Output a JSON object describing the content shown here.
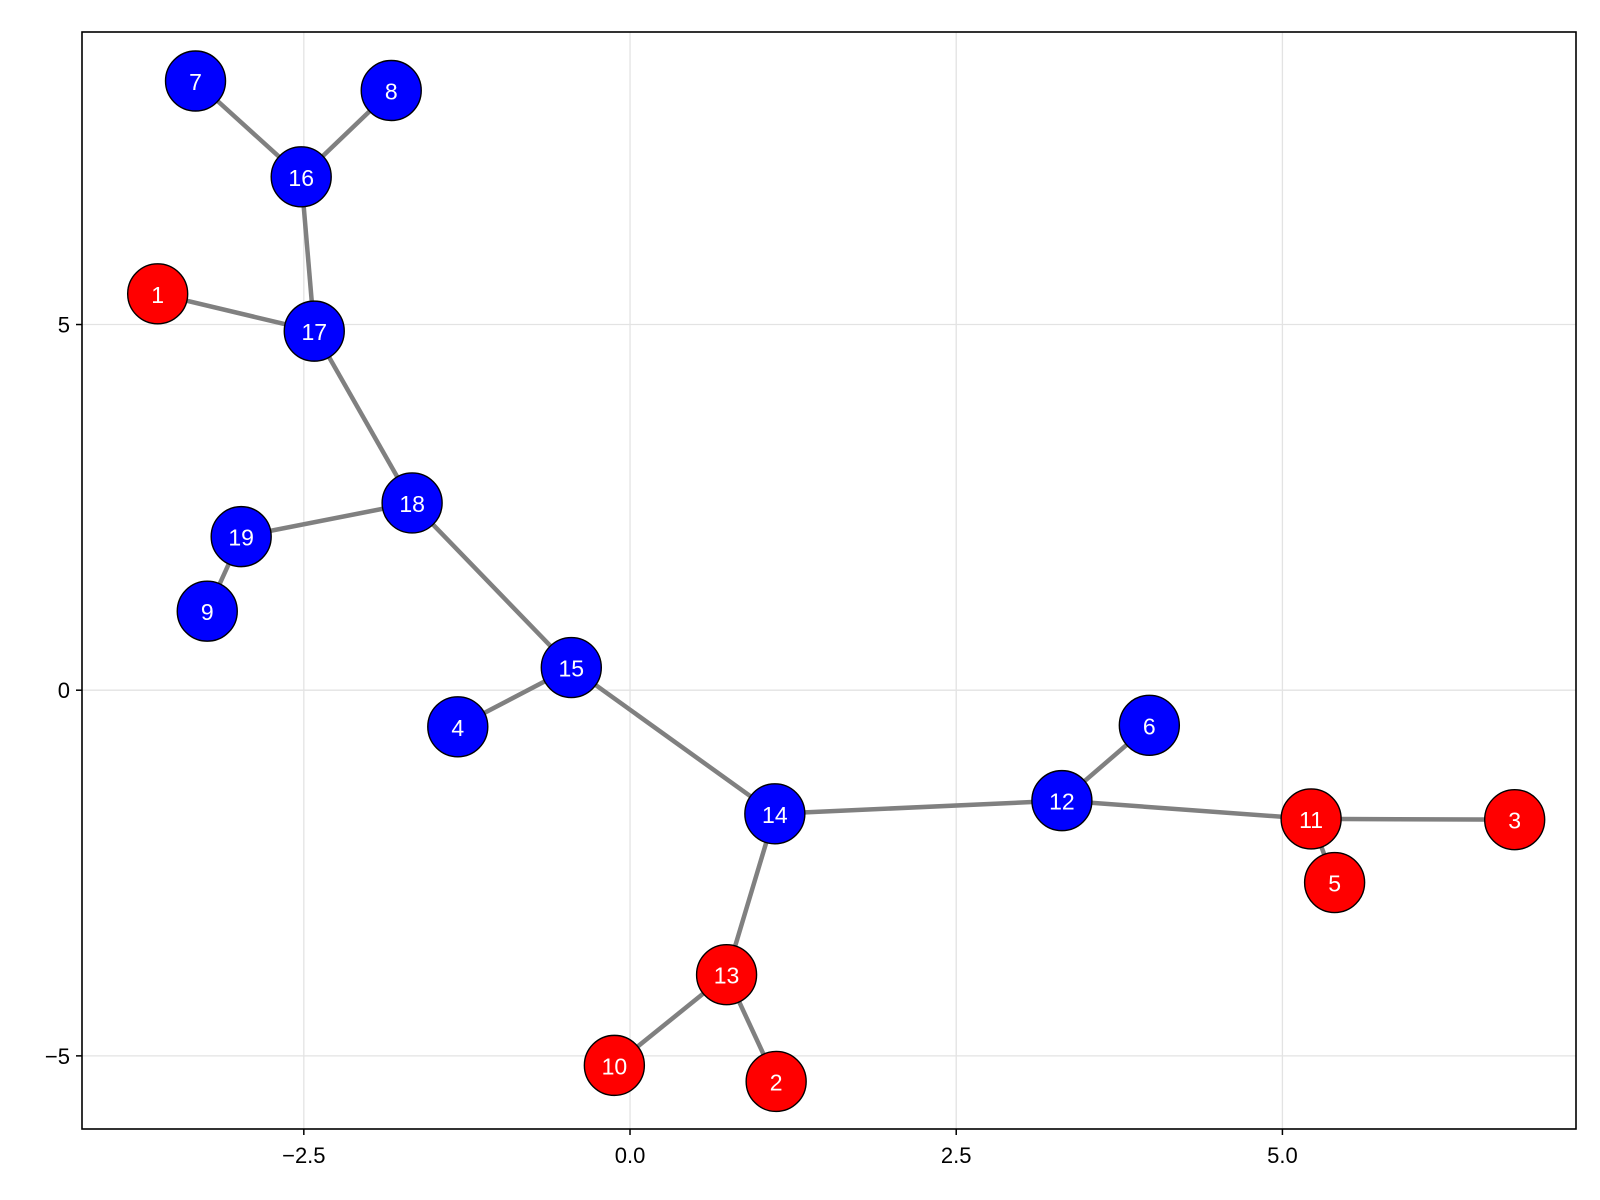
{
  "chart_data": {
    "type": "network",
    "title": "",
    "xlabel": "",
    "ylabel": "",
    "xlim": [
      -4.2,
      7.25
    ],
    "ylim": [
      -6.0,
      9.0
    ],
    "x_ticks": [
      {
        "value": -2.5,
        "label": "−2.5"
      },
      {
        "value": 0.0,
        "label": "0.0"
      },
      {
        "value": 2.5,
        "label": "2.5"
      },
      {
        "value": 5.0,
        "label": "5.0"
      }
    ],
    "y_ticks": [
      {
        "value": 5,
        "label": "5"
      },
      {
        "value": 0,
        "label": "0"
      },
      {
        "value": -5,
        "label": "−5"
      }
    ],
    "grid": true,
    "colors": {
      "red": "#ff0000",
      "blue": "#0000ff",
      "edge": "#808080",
      "grid": "#e3e3e3"
    },
    "nodes": [
      {
        "id": "1",
        "x": -3.62,
        "y": 5.42,
        "color": "red"
      },
      {
        "id": "2",
        "x": 1.12,
        "y": -5.35,
        "color": "red"
      },
      {
        "id": "3",
        "x": 6.78,
        "y": -1.77,
        "color": "red"
      },
      {
        "id": "4",
        "x": -1.32,
        "y": -0.5,
        "color": "blue"
      },
      {
        "id": "5",
        "x": 5.4,
        "y": -2.63,
        "color": "red"
      },
      {
        "id": "6",
        "x": 3.98,
        "y": -0.48,
        "color": "blue"
      },
      {
        "id": "7",
        "x": -3.33,
        "y": 8.33,
        "color": "blue"
      },
      {
        "id": "8",
        "x": -1.83,
        "y": 8.2,
        "color": "blue"
      },
      {
        "id": "9",
        "x": -3.24,
        "y": 1.08,
        "color": "blue"
      },
      {
        "id": "10",
        "x": -0.12,
        "y": -5.13,
        "color": "red"
      },
      {
        "id": "11",
        "x": 5.22,
        "y": -1.76,
        "color": "red"
      },
      {
        "id": "12",
        "x": 3.31,
        "y": -1.51,
        "color": "blue"
      },
      {
        "id": "13",
        "x": 0.74,
        "y": -3.89,
        "color": "red"
      },
      {
        "id": "14",
        "x": 1.11,
        "y": -1.69,
        "color": "blue"
      },
      {
        "id": "15",
        "x": -0.45,
        "y": 0.31,
        "color": "blue"
      },
      {
        "id": "16",
        "x": -2.52,
        "y": 7.02,
        "color": "blue"
      },
      {
        "id": "17",
        "x": -2.42,
        "y": 4.91,
        "color": "blue"
      },
      {
        "id": "18",
        "x": -1.67,
        "y": 2.56,
        "color": "blue"
      },
      {
        "id": "19",
        "x": -2.98,
        "y": 2.1,
        "color": "blue"
      }
    ],
    "edges": [
      [
        "7",
        "16"
      ],
      [
        "8",
        "16"
      ],
      [
        "16",
        "17"
      ],
      [
        "1",
        "17"
      ],
      [
        "17",
        "18"
      ],
      [
        "19",
        "18"
      ],
      [
        "9",
        "19"
      ],
      [
        "18",
        "15"
      ],
      [
        "4",
        "15"
      ],
      [
        "15",
        "14"
      ],
      [
        "14",
        "13"
      ],
      [
        "13",
        "10"
      ],
      [
        "13",
        "2"
      ],
      [
        "14",
        "12"
      ],
      [
        "12",
        "6"
      ],
      [
        "12",
        "11"
      ],
      [
        "11",
        "3"
      ],
      [
        "11",
        "5"
      ]
    ]
  }
}
